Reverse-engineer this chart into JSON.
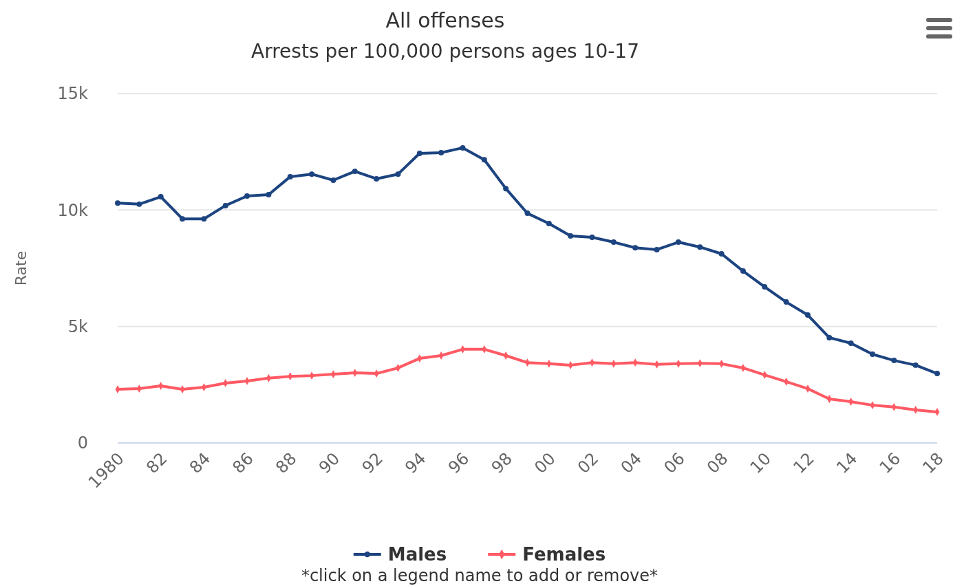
{
  "chart_data": {
    "type": "line",
    "title": "All offenses",
    "subtitle": "Arrests per 100,000 persons ages 10-17",
    "ylabel": "Rate",
    "x": [
      1980,
      1981,
      1982,
      1983,
      1984,
      1985,
      1986,
      1987,
      1988,
      1989,
      1990,
      1991,
      1992,
      1993,
      1994,
      1995,
      1996,
      1997,
      1998,
      1999,
      2000,
      2001,
      2002,
      2003,
      2004,
      2005,
      2006,
      2007,
      2008,
      2009,
      2010,
      2011,
      2012,
      2013,
      2014,
      2015,
      2016,
      2017,
      2018
    ],
    "series": [
      {
        "name": "Males",
        "color": "#1c4480",
        "marker": "circle",
        "values": [
          10300,
          10250,
          10570,
          9620,
          9620,
          10190,
          10600,
          10660,
          11430,
          11540,
          11280,
          11660,
          11340,
          11540,
          12430,
          12460,
          12670,
          12160,
          10920,
          9860,
          9420,
          8890,
          8830,
          8620,
          8380,
          8300,
          8620,
          8410,
          8120,
          7380,
          6700,
          6050,
          5490,
          4520,
          4280,
          3810,
          3540,
          3340,
          2980
        ]
      },
      {
        "name": "Females",
        "color": "#ff5a64",
        "marker": "diamond",
        "values": [
          2300,
          2330,
          2450,
          2300,
          2390,
          2570,
          2660,
          2780,
          2860,
          2890,
          2950,
          3010,
          2980,
          3220,
          3630,
          3750,
          4020,
          4020,
          3750,
          3450,
          3400,
          3340,
          3450,
          3400,
          3450,
          3370,
          3400,
          3420,
          3400,
          3220,
          2920,
          2630,
          2330,
          1890,
          1770,
          1620,
          1540,
          1420,
          1330
        ]
      }
    ],
    "xlim": [
      1980,
      2018
    ],
    "xticks": [
      {
        "value": 1980,
        "label": "1980"
      },
      {
        "value": 1982,
        "label": "82"
      },
      {
        "value": 1984,
        "label": "84"
      },
      {
        "value": 1986,
        "label": "86"
      },
      {
        "value": 1988,
        "label": "88"
      },
      {
        "value": 1990,
        "label": "90"
      },
      {
        "value": 1992,
        "label": "92"
      },
      {
        "value": 1994,
        "label": "94"
      },
      {
        "value": 1996,
        "label": "96"
      },
      {
        "value": 1998,
        "label": "98"
      },
      {
        "value": 2000,
        "label": "00"
      },
      {
        "value": 2002,
        "label": "02"
      },
      {
        "value": 2004,
        "label": "04"
      },
      {
        "value": 2006,
        "label": "06"
      },
      {
        "value": 2008,
        "label": "08"
      },
      {
        "value": 2010,
        "label": "10"
      },
      {
        "value": 2012,
        "label": "12"
      },
      {
        "value": 2014,
        "label": "14"
      },
      {
        "value": 2016,
        "label": "16"
      },
      {
        "value": 2018,
        "label": "18"
      }
    ],
    "ylim": [
      0,
      15000
    ],
    "yticks": [
      0,
      {
        "value": 5000,
        "label": "5k"
      },
      {
        "value": 10000,
        "label": "10k"
      },
      {
        "value": 15000,
        "label": "15k"
      }
    ],
    "grid": "y",
    "legend": "bottom",
    "line_style": "solid",
    "annotations": [
      "*click on a legend name to add or remove*"
    ]
  }
}
